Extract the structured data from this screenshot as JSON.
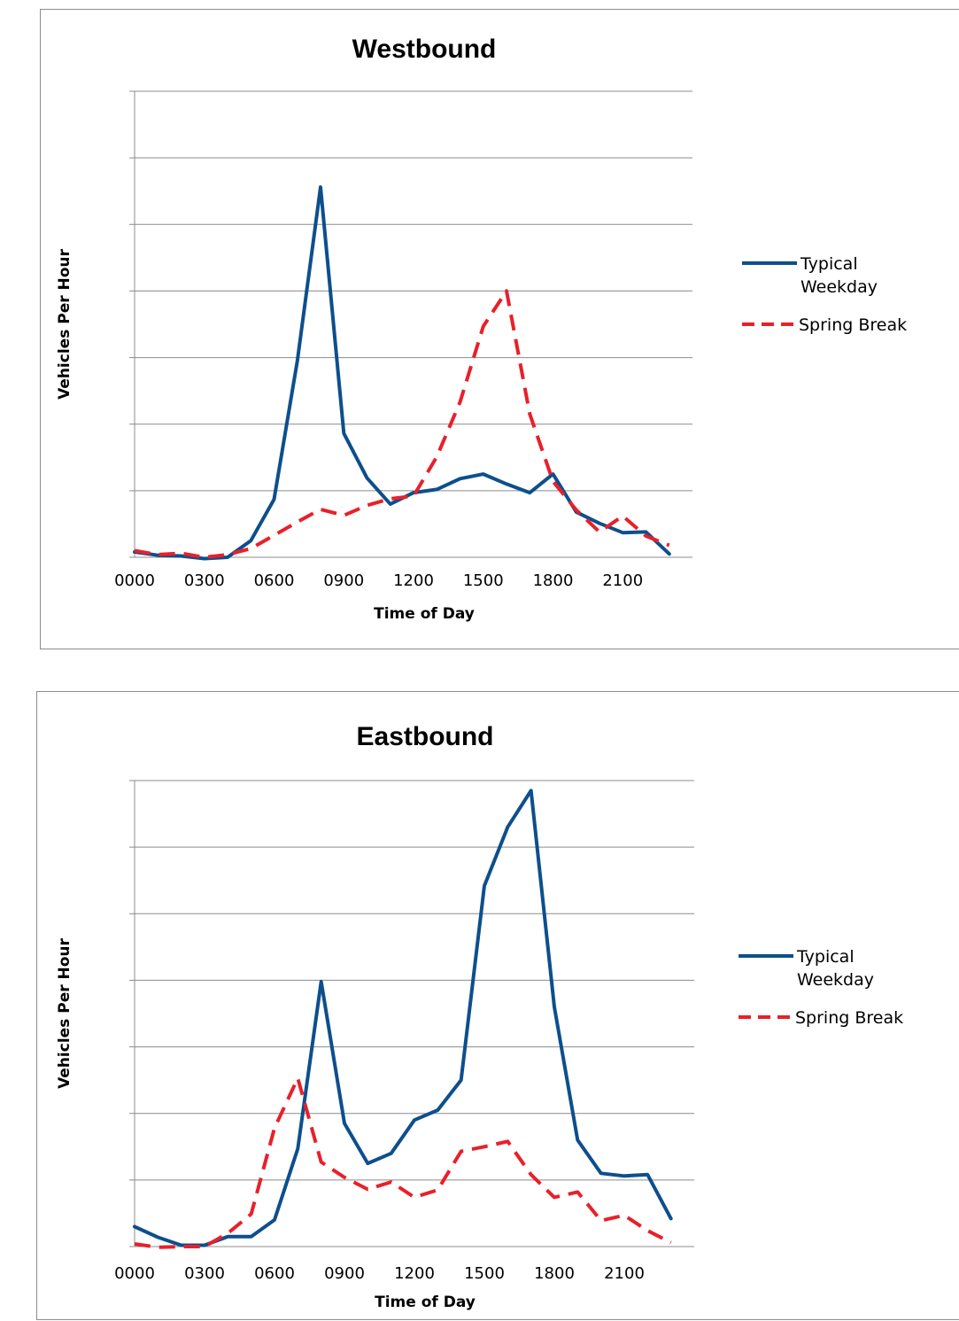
{
  "colors": {
    "typical": "#0d4f8c",
    "spring": "#e8202a",
    "grid": "#8c8c8c",
    "border": "#8c8c8c"
  },
  "chart_data": [
    {
      "type": "line",
      "title": "Westbound",
      "xlabel": "Time of Day",
      "ylabel": "Vehicles Per Hour",
      "y_tick_labels_shown": false,
      "categories": [
        "0000",
        "0100",
        "0200",
        "0300",
        "0400",
        "0500",
        "0600",
        "0700",
        "0800",
        "0900",
        "1000",
        "1100",
        "1200",
        "1300",
        "1400",
        "1500",
        "1600",
        "1700",
        "1800",
        "1900",
        "2000",
        "2100",
        "2200",
        "2300"
      ],
      "x_tick_labels": [
        "0000",
        "0300",
        "0600",
        "0900",
        "1200",
        "1500",
        "1800",
        "2100"
      ],
      "grid": true,
      "legend_position": "right",
      "ylim": [
        0,
        7
      ],
      "series": [
        {
          "name": "Typical Weekday",
          "style": "solid",
          "values": [
            0.08,
            0.03,
            0.02,
            -0.02,
            0.0,
            0.25,
            0.87,
            2.95,
            5.56,
            1.86,
            1.19,
            0.8,
            0.97,
            1.02,
            1.18,
            1.25,
            1.1,
            0.97,
            1.25,
            0.68,
            0.51,
            0.37,
            0.38,
            0.05
          ]
        },
        {
          "name": "Spring Break",
          "style": "dashed",
          "values": [
            0.1,
            0.04,
            0.06,
            0.0,
            0.04,
            0.13,
            0.33,
            0.53,
            0.72,
            0.63,
            0.78,
            0.88,
            0.92,
            1.51,
            2.33,
            3.47,
            4.0,
            2.15,
            1.14,
            0.71,
            0.38,
            0.62,
            0.32,
            0.18
          ]
        }
      ]
    },
    {
      "type": "line",
      "title": "Eastbound",
      "xlabel": "Time of Day",
      "ylabel": "Vehicles Per Hour",
      "y_tick_labels_shown": false,
      "categories": [
        "0000",
        "0100",
        "0200",
        "0300",
        "0400",
        "0500",
        "0600",
        "0700",
        "0800",
        "0900",
        "1000",
        "1100",
        "1200",
        "1300",
        "1400",
        "1500",
        "1600",
        "1700",
        "1800",
        "1900",
        "2000",
        "2100",
        "2200",
        "2300"
      ],
      "x_tick_labels": [
        "0000",
        "0300",
        "0600",
        "0900",
        "1200",
        "1500",
        "1800",
        "2100"
      ],
      "grid": true,
      "legend_position": "right",
      "ylim": [
        0,
        7
      ],
      "series": [
        {
          "name": "Typical Weekday",
          "style": "solid",
          "values": [
            0.3,
            0.14,
            0.02,
            0.02,
            0.15,
            0.15,
            0.4,
            1.47,
            3.98,
            1.85,
            1.25,
            1.4,
            1.9,
            2.05,
            2.5,
            5.42,
            6.3,
            6.85,
            3.6,
            1.6,
            1.1,
            1.06,
            1.08,
            0.42
          ]
        },
        {
          "name": "Spring Break",
          "style": "dashed",
          "values": [
            0.04,
            -0.01,
            0.0,
            0.0,
            0.2,
            0.49,
            1.78,
            2.53,
            1.27,
            1.04,
            0.86,
            0.97,
            0.74,
            0.85,
            1.43,
            1.5,
            1.58,
            1.08,
            0.74,
            0.82,
            0.39,
            0.47,
            0.24,
            0.06
          ]
        }
      ]
    }
  ]
}
